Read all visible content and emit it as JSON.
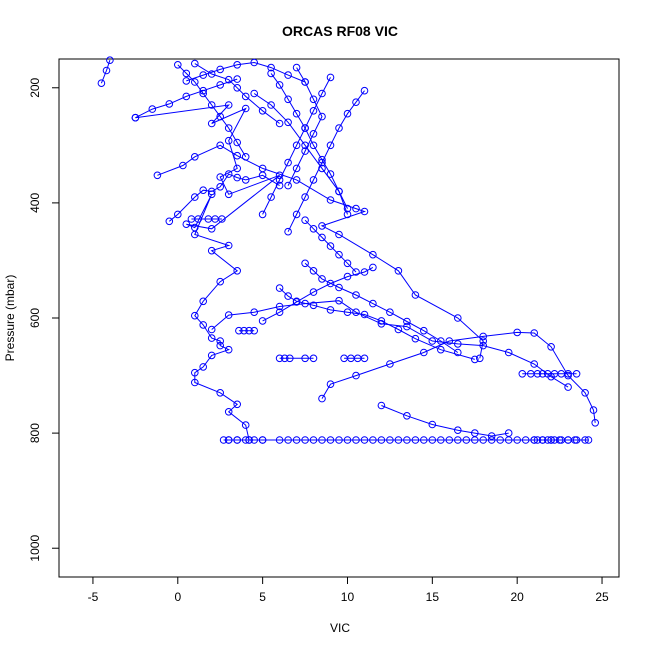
{
  "chart_data": {
    "type": "scatter",
    "title": "ORCAS RF08 VIC",
    "xlabel": "VIC",
    "ylabel": "Pressure (mbar)",
    "xlim": [
      -7,
      26
    ],
    "ylim": [
      1050,
      150
    ],
    "y_reversed": true,
    "x_ticks": [
      -5,
      0,
      5,
      10,
      15,
      20,
      25
    ],
    "y_ticks": [
      200,
      400,
      600,
      800,
      1000
    ],
    "grid": false,
    "legend": "none",
    "marker": "open-circle",
    "line": true,
    "color": "#0000ff",
    "series": [
      {
        "x": [
          -4.5,
          -4.2,
          -4.0
        ],
        "y": [
          192,
          170,
          152
        ]
      },
      {
        "x": [
          -2.5,
          3.0,
          2.0,
          4.0,
          3.0,
          3.5,
          2.5,
          3.0,
          6.0,
          2.0,
          0.5,
          1.0,
          2.0,
          1.0,
          3.0,
          2.0,
          3.5,
          2.5,
          1.5,
          1.0,
          1.5,
          2.0,
          2.5,
          2.5,
          3.0,
          2.0,
          1.5,
          1.0,
          1.0,
          2.5,
          3.5,
          3.0,
          4.0,
          4.2
        ],
        "y": [
          252,
          230,
          262,
          236,
          292,
          340,
          355,
          385,
          352,
          445,
          437,
          443,
          385,
          455,
          474,
          483,
          518,
          537,
          571,
          596,
          612,
          635,
          640,
          648,
          655,
          665,
          685,
          695,
          712,
          730,
          750,
          763,
          786,
          812
        ]
      },
      {
        "x": [
          -1.2,
          0.3,
          1.0,
          2.5,
          3.5,
          5.0,
          7.0,
          9.0,
          10.5,
          11.0,
          8.5,
          9.5,
          11.5,
          13.0,
          14.0,
          16.5,
          18.0,
          17.8
        ],
        "y": [
          352,
          335,
          320,
          300,
          318,
          340,
          360,
          395,
          410,
          415,
          440,
          455,
          490,
          518,
          560,
          600,
          640,
          670
        ]
      },
      {
        "x": [
          -0.5,
          0.0,
          1.0,
          1.5,
          2.0,
          2.5,
          3.0,
          3.5,
          4.0,
          5.0,
          6.0
        ],
        "y": [
          432,
          420,
          390,
          378,
          380,
          372,
          350,
          356,
          360,
          352,
          370
        ]
      },
      {
        "x": [
          8.5,
          9.0,
          10.5,
          12.5,
          14.5,
          16.0,
          18.0,
          20.0,
          21.0,
          22.0,
          23.0,
          24.0,
          24.5,
          24.6
        ],
        "y": [
          740,
          715,
          700,
          680,
          660,
          640,
          632,
          625,
          626,
          650,
          700,
          730,
          760,
          782
        ]
      },
      {
        "x": [
          2.0,
          3.0,
          4.5,
          6.0,
          7.5,
          9.5,
          10.5,
          12.0,
          13.5,
          15.0,
          16.5,
          18.0,
          19.5,
          21.0,
          22.0,
          23.0
        ],
        "y": [
          620,
          595,
          590,
          580,
          575,
          570,
          590,
          610,
          615,
          640,
          645,
          648,
          660,
          680,
          702,
          720
        ]
      },
      {
        "x": [
          6.0,
          6.5,
          7.0,
          8.0,
          9.0,
          10.0,
          11.0,
          12.0,
          13.0,
          14.0,
          15.5,
          17.5
        ],
        "y": [
          548,
          562,
          571,
          578,
          586,
          590,
          594,
          605,
          620,
          636,
          655,
          672
        ]
      },
      {
        "x": [
          7.5,
          8.0,
          8.5,
          9.5,
          10.5,
          11.5,
          12.5,
          13.5,
          14.5,
          15.5,
          16.5
        ],
        "y": [
          505,
          518,
          532,
          547,
          560,
          575,
          590,
          606,
          622,
          640,
          660
        ]
      },
      {
        "x": [
          5.0,
          6.0,
          7.0,
          8.0,
          9.0,
          10.0,
          11.0,
          11.5
        ],
        "y": [
          605,
          590,
          572,
          555,
          540,
          528,
          520,
          512
        ]
      },
      {
        "x": [
          12.0,
          13.5,
          15.0,
          16.5,
          17.5,
          18.5,
          19.5
        ],
        "y": [
          752,
          770,
          785,
          795,
          800,
          805,
          800
        ]
      },
      {
        "x": [
          4.5,
          5.5,
          6.5,
          7.5,
          8.5,
          9.5,
          10.0
        ],
        "y": [
          210,
          230,
          260,
          300,
          340,
          380,
          420
        ]
      },
      {
        "x": [
          9.0,
          8.5,
          8.0,
          7.5,
          7.0,
          6.5,
          6.0,
          5.5,
          5.0
        ],
        "y": [
          182,
          210,
          240,
          270,
          300,
          330,
          360,
          390,
          420
        ]
      },
      {
        "x": [
          11.0,
          10.5,
          10.0,
          9.5,
          9.0,
          8.5,
          8.0,
          7.5,
          7.0,
          6.5
        ],
        "y": [
          205,
          225,
          245,
          270,
          300,
          330,
          360,
          390,
          420,
          450
        ]
      },
      {
        "x": [
          7.0,
          7.5,
          8.0,
          8.5,
          8.0,
          7.5,
          7.0,
          6.5
        ],
        "y": [
          165,
          190,
          220,
          250,
          280,
          310,
          340,
          370
        ]
      },
      {
        "x": [
          0.0,
          0.5,
          1.0,
          1.5,
          2.0,
          2.5,
          3.0,
          3.5,
          4.0
        ],
        "y": [
          160,
          175,
          190,
          210,
          230,
          250,
          270,
          295,
          320
        ]
      },
      {
        "x": [
          1.0,
          2.0,
          3.0,
          3.5,
          4.0,
          5.0,
          6.0
        ],
        "y": [
          158,
          176,
          186,
          200,
          215,
          240,
          262
        ]
      },
      {
        "x": [
          3.0,
          3.0,
          3.5,
          4.0,
          4.5,
          5.0
        ],
        "y": [
          812,
          812,
          812,
          812,
          812,
          812
        ]
      },
      {
        "x": [
          6.5,
          7.5,
          8.5,
          9.5,
          10.5,
          11.5,
          12.5,
          13.5,
          14.5,
          15.5,
          16.5,
          17.5,
          18.5,
          19.5,
          20.5,
          21.5,
          22.5,
          23.5,
          24.0
        ],
        "y": [
          812,
          812,
          812,
          812,
          812,
          812,
          812,
          812,
          812,
          812,
          812,
          812,
          812,
          812,
          812,
          812,
          812,
          812,
          812
        ]
      },
      {
        "x": [
          2.7,
          3.5,
          4.2,
          5.0,
          6.0,
          7.0,
          8.0,
          9.0,
          10.0,
          11.0,
          12.0,
          13.0,
          14.0,
          15.0,
          16.0,
          17.0,
          18.0,
          19.0,
          20.0,
          21.0,
          22.0,
          23.0,
          24.2
        ],
        "y": [
          812,
          812,
          812,
          812,
          812,
          812,
          812,
          812,
          812,
          812,
          812,
          812,
          812,
          812,
          812,
          812,
          812,
          812,
          812,
          812,
          812,
          812,
          812
        ]
      },
      {
        "x": [
          20.3,
          20.8,
          21.2,
          21.5,
          21.8,
          22.2,
          22.6,
          23.0,
          23.5
        ],
        "y": [
          697,
          697,
          697,
          697,
          697,
          697,
          697,
          697,
          697
        ]
      },
      {
        "x": [
          21.0,
          21.2,
          21.5,
          21.8,
          22.0,
          22.2,
          22.6,
          23.0,
          23.4
        ],
        "y": [
          812,
          812,
          812,
          812,
          812,
          812,
          812,
          812,
          812
        ]
      },
      {
        "x": [
          0.8,
          1.2,
          1.8,
          2.2,
          2.6
        ],
        "y": [
          428,
          428,
          428,
          428,
          428
        ]
      },
      {
        "x": [
          3.6,
          3.9,
          4.2,
          4.5
        ],
        "y": [
          622,
          622,
          622,
          622
        ]
      },
      {
        "x": [
          6.0,
          6.3,
          6.6,
          7.5,
          8.0
        ],
        "y": [
          670,
          670,
          670,
          670,
          670
        ]
      },
      {
        "x": [
          9.8,
          10.2,
          10.6,
          11.0
        ],
        "y": [
          670,
          670,
          670,
          670
        ]
      },
      {
        "x": [
          -2.5,
          -1.5,
          -0.5,
          0.5,
          1.5,
          2.5,
          3.5
        ],
        "y": [
          252,
          237,
          228,
          215,
          205,
          195,
          185
        ]
      },
      {
        "x": [
          0.5,
          1.5,
          2.5,
          3.5,
          4.5,
          5.5,
          6.5,
          7.5
        ],
        "y": [
          188,
          178,
          168,
          160,
          156,
          165,
          178,
          190
        ]
      },
      {
        "x": [
          5.5,
          6.0,
          6.5,
          7.0,
          7.5,
          8.0,
          8.5,
          9.0,
          9.5,
          10.0
        ],
        "y": [
          175,
          195,
          220,
          245,
          270,
          300,
          325,
          350,
          380,
          410
        ]
      },
      {
        "x": [
          7.5,
          8.0,
          8.5,
          9.0,
          9.5,
          10.0,
          10.5
        ],
        "y": [
          430,
          445,
          460,
          475,
          490,
          505,
          520
        ]
      }
    ]
  }
}
